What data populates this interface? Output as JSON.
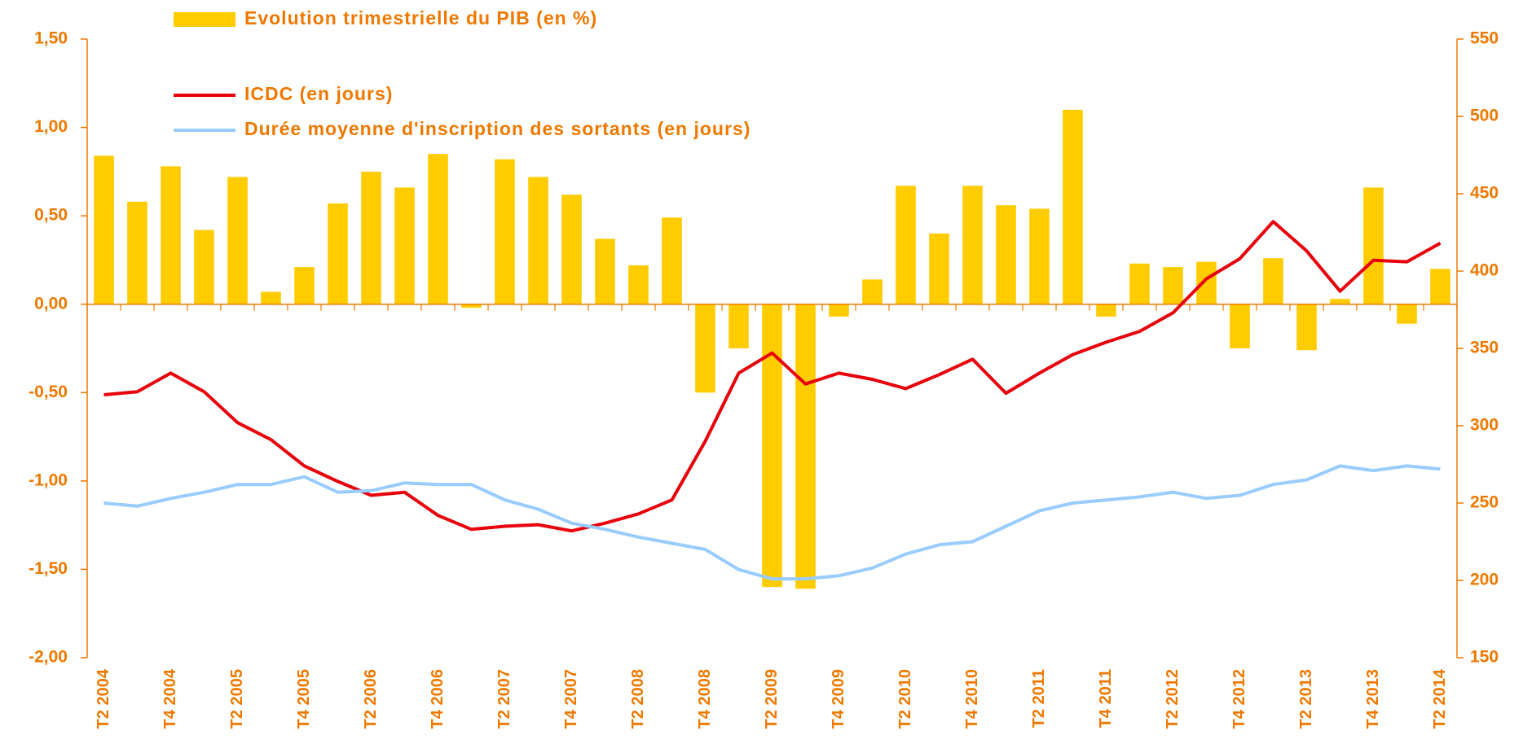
{
  "chart_data": {
    "type": "bar_line",
    "categories": [
      "T2 2004",
      null,
      "T4 2004",
      null,
      "T2 2005",
      null,
      "T4 2005",
      null,
      "T2 2006",
      null,
      "T4 2006",
      null,
      "T2 2007",
      null,
      "T4 2007",
      null,
      "T2 2008",
      null,
      "T4 2008",
      null,
      "T2 2009",
      null,
      "T4 2009",
      null,
      "T2 2010",
      null,
      "T4 2010",
      null,
      "T2 2011",
      null,
      "T4 2011",
      null,
      "T2 2012",
      null,
      "T4 2012",
      null,
      "T2 2013",
      null,
      "T4 2013",
      null,
      "T2 2014"
    ],
    "series": [
      {
        "name": "Evolution trimestrielle du PIB (en %)",
        "type": "bar",
        "color": "#FFCC00",
        "values": [
          0.84,
          0.58,
          0.78,
          0.42,
          0.72,
          0.07,
          0.21,
          0.57,
          0.75,
          0.66,
          0.85,
          -0.02,
          0.82,
          0.72,
          0.62,
          0.37,
          0.22,
          0.49,
          -0.5,
          -0.25,
          -1.6,
          -1.61,
          -0.07,
          0.14,
          0.67,
          0.4,
          0.67,
          0.56,
          0.54,
          1.1,
          -0.07,
          0.23,
          0.21,
          0.24,
          -0.25,
          0.26,
          -0.26,
          0.03,
          0.66,
          -0.11,
          0.2
        ]
      },
      {
        "name": "ICDC (en jours)",
        "type": "line",
        "axis": "y2",
        "color": "#E8000B",
        "values": [
          320,
          322,
          334,
          322,
          302,
          291,
          274,
          264,
          255,
          257,
          242,
          233,
          235,
          236,
          232,
          237,
          243,
          252,
          290,
          334,
          347,
          327,
          334,
          330,
          324,
          333,
          343,
          321,
          334,
          346,
          354,
          361,
          373,
          395,
          408,
          432,
          413,
          387,
          407,
          406,
          418
        ]
      },
      {
        "name": "Durée moyenne d'inscription des sortants (en jours)",
        "type": "line",
        "axis": "y2",
        "color": "#99CCFF",
        "values": [
          250,
          248,
          253,
          257,
          262,
          262,
          267,
          257,
          258,
          263,
          262,
          262,
          252,
          246,
          237,
          233,
          228,
          224,
          220,
          207,
          201,
          201,
          203,
          208,
          217,
          223,
          225,
          235,
          245,
          250,
          252,
          254,
          257,
          253,
          255,
          262,
          265,
          274,
          271,
          274,
          272
        ]
      }
    ],
    "ylim": [
      -2,
      1.5
    ],
    "yticks": [
      {
        "value": -2,
        "label": "-2,00"
      },
      {
        "value": -1.5,
        "label": "-1,50"
      },
      {
        "value": -1,
        "label": "-1,00"
      },
      {
        "value": -0.5,
        "label": "-0,50"
      },
      {
        "value": 0,
        "label": "0,00"
      },
      {
        "value": 0.5,
        "label": "0,50"
      },
      {
        "value": 1,
        "label": "1,00"
      },
      {
        "value": 1.5,
        "label": "1,50"
      }
    ],
    "y2lim": [
      150,
      550
    ],
    "y2ticks": [
      150,
      200,
      250,
      300,
      350,
      400,
      450,
      500,
      550
    ],
    "legend": "top-left"
  }
}
